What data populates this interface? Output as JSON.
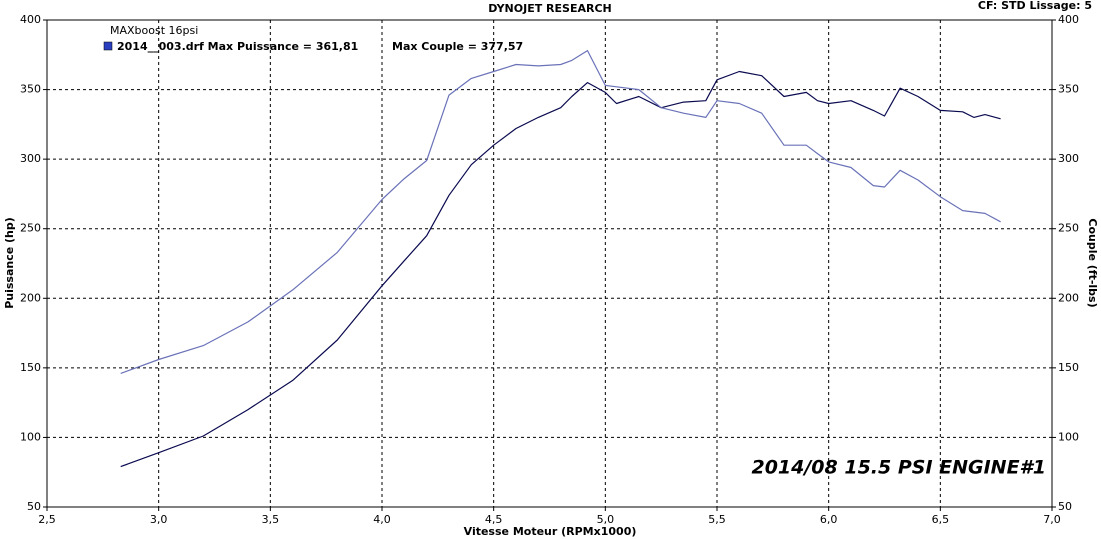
{
  "chart_data": {
    "type": "line",
    "title": "DYNOJET RESEARCH",
    "subtitle": "CF: STD  Lissage: 5",
    "legend_title": "MAXboost 16psi",
    "annotation": "2014/08    15.5 PSI  ENGINE#1",
    "xlabel": "Vitesse Moteur (RPMx1000)",
    "ylabel": "Puissance (hp)",
    "y2label": "Couple (ft-lbs)",
    "x": [
      2.83,
      3.0,
      3.2,
      3.4,
      3.6,
      3.8,
      4.0,
      4.1,
      4.2,
      4.3,
      4.4,
      4.5,
      4.6,
      4.7,
      4.8,
      4.85,
      4.92,
      5.0,
      5.05,
      5.15,
      5.25,
      5.35,
      5.45,
      5.5,
      5.6,
      5.7,
      5.8,
      5.9,
      5.95,
      6.0,
      6.1,
      6.2,
      6.25,
      6.32,
      6.4,
      6.5,
      6.6,
      6.65,
      6.7,
      6.77
    ],
    "series": [
      {
        "name": "2014__003.drf Max Puissance = 361,81",
        "color": "#0a0a50",
        "values": [
          79,
          89,
          101,
          120,
          141,
          170,
          209,
          227,
          245,
          274,
          296,
          310,
          322,
          330,
          337,
          345,
          355,
          348,
          340,
          345,
          337,
          341,
          342,
          357,
          363,
          360,
          345,
          348,
          342,
          340,
          342,
          335,
          331,
          351,
          345,
          335,
          334,
          330,
          332,
          329
        ]
      },
      {
        "name": "Max Couple = 377,57",
        "color": "#6a72b8",
        "axis": "y2",
        "values": [
          146,
          156,
          166,
          183,
          206,
          233,
          271,
          286,
          299,
          346,
          358,
          363,
          368,
          367,
          368,
          371,
          378,
          353,
          352,
          350,
          337,
          333,
          330,
          342,
          340,
          333,
          310,
          310,
          304,
          298,
          294,
          281,
          280,
          292,
          285,
          273,
          263,
          262,
          261,
          255
        ]
      }
    ],
    "xlim": [
      2.5,
      7.0
    ],
    "xticks": [
      {
        "value": 2.5,
        "label": "2,5"
      },
      {
        "value": 3.0,
        "label": "3,0"
      },
      {
        "value": 3.5,
        "label": "3,5"
      },
      {
        "value": 4.0,
        "label": "4,0"
      },
      {
        "value": 4.5,
        "label": "4,5"
      },
      {
        "value": 5.0,
        "label": "5,0"
      },
      {
        "value": 5.5,
        "label": "5,5"
      },
      {
        "value": 6.0,
        "label": "6,0"
      },
      {
        "value": 6.5,
        "label": "6,5"
      },
      {
        "value": 7.0,
        "label": "7,0"
      }
    ],
    "ylim": [
      50,
      400
    ],
    "yticks": [
      50,
      100,
      150,
      200,
      250,
      300,
      350,
      400
    ],
    "y2lim": [
      50,
      400
    ],
    "y2ticks": [
      50,
      100,
      150,
      200,
      250,
      300,
      350,
      400
    ],
    "grid": true
  }
}
